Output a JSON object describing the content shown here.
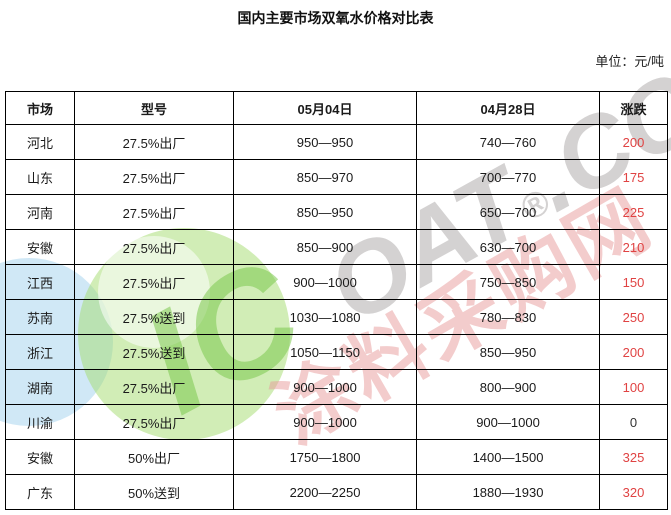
{
  "page": {
    "title": "国内主要市场双氧水价格对比表",
    "unit_label": "单位：元/吨"
  },
  "table": {
    "columns": [
      "市场",
      "型号",
      "05月04日",
      "04月28日",
      "涨跌"
    ],
    "rows": [
      {
        "market": "河北",
        "grade": "27.5%出厂",
        "price_new": "950—950",
        "price_old": "740—760",
        "change": "200",
        "trend": "up"
      },
      {
        "market": "山东",
        "grade": "27.5%出厂",
        "price_new": "850—970",
        "price_old": "700—770",
        "change": "175",
        "trend": "up"
      },
      {
        "market": "河南",
        "grade": "27.5%出厂",
        "price_new": "850—950",
        "price_old": "650—700",
        "change": "225",
        "trend": "up"
      },
      {
        "market": "安徽",
        "grade": "27.5%出厂",
        "price_new": "850—900",
        "price_old": "630—700",
        "change": "210",
        "trend": "up"
      },
      {
        "market": "江西",
        "grade": "27.5%出厂",
        "price_new": "900—1000",
        "price_old": "750—850",
        "change": "150",
        "trend": "up"
      },
      {
        "market": "苏南",
        "grade": "27.5%送到",
        "price_new": "1030—1080",
        "price_old": "780—830",
        "change": "250",
        "trend": "up"
      },
      {
        "market": "浙江",
        "grade": "27.5%送到",
        "price_new": "1050—1150",
        "price_old": "850—950",
        "change": "200",
        "trend": "up"
      },
      {
        "market": "湖南",
        "grade": "27.5%出厂",
        "price_new": "900—1000",
        "price_old": "800—900",
        "change": "100",
        "trend": "up"
      },
      {
        "market": "川渝",
        "grade": "27.5%出厂",
        "price_new": "900—1000",
        "price_old": "900—1000",
        "change": "0",
        "trend": "flat"
      },
      {
        "market": "安徽",
        "grade": "50%出厂",
        "price_new": "1750—1800",
        "price_old": "1400—1500",
        "change": "325",
        "trend": "up"
      },
      {
        "market": "广东",
        "grade": "50%送到",
        "price_new": "2200—2250",
        "price_old": "1880—1930",
        "change": "320",
        "trend": "up"
      }
    ]
  },
  "watermark": {
    "logo_prefix": "IC",
    "brand_rest": "OAT",
    "registered": "®",
    "domain_suffix": ".CC",
    "cn_text": "涂料采购网"
  },
  "colors": {
    "change_up": "#e04343",
    "change_flat": "#333333",
    "border": "#000000",
    "watermark_green": "#7cc84f",
    "watermark_blue": "#8ec9e9",
    "watermark_gray": "#8f8a8a",
    "watermark_pink": "#e89a9a"
  },
  "chart_data": {
    "type": "table",
    "title": "国内主要市场双氧水价格对比表",
    "unit": "元/吨",
    "columns": [
      "市场",
      "型号",
      "05月04日",
      "04月28日",
      "涨跌"
    ],
    "rows": [
      [
        "河北",
        "27.5%出厂",
        "950—950",
        "740—760",
        "200"
      ],
      [
        "山东",
        "27.5%出厂",
        "850—970",
        "700—770",
        "175"
      ],
      [
        "河南",
        "27.5%出厂",
        "850—950",
        "650—700",
        "225"
      ],
      [
        "安徽",
        "27.5%出厂",
        "850—900",
        "630—700",
        "210"
      ],
      [
        "江西",
        "27.5%出厂",
        "900—1000",
        "750—850",
        "150"
      ],
      [
        "苏南",
        "27.5%送到",
        "1030—1080",
        "780—830",
        "250"
      ],
      [
        "浙江",
        "27.5%送到",
        "1050—1150",
        "850—950",
        "200"
      ],
      [
        "湖南",
        "27.5%出厂",
        "900—1000",
        "800—900",
        "100"
      ],
      [
        "川渝",
        "27.5%出厂",
        "900—1000",
        "900—1000",
        "0"
      ],
      [
        "安徽",
        "50%出厂",
        "1750—1800",
        "1400—1500",
        "325"
      ],
      [
        "广东",
        "50%送到",
        "2200—2250",
        "1880—1930",
        "320"
      ]
    ]
  }
}
